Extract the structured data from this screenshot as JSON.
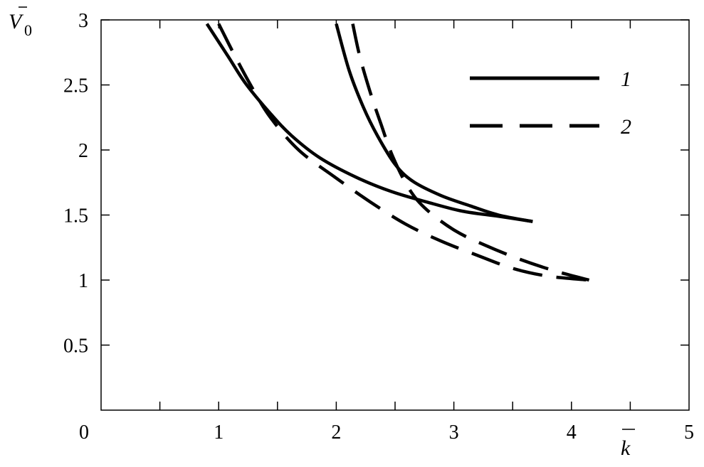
{
  "chart_data": {
    "type": "line",
    "title": "",
    "xlabel": "k",
    "ylabel": "V",
    "ylabel_subscript": "0",
    "xlim": [
      0,
      5
    ],
    "ylim": [
      0,
      3
    ],
    "xticks": [
      0,
      1,
      2,
      3,
      4,
      5
    ],
    "xtick_labels": [
      "0",
      "1",
      "2",
      "3",
      "4",
      "5"
    ],
    "yticks": [
      0.5,
      1,
      1.5,
      2,
      2.5,
      3
    ],
    "ytick_labels": [
      "0.5",
      "1",
      "1.5",
      "2",
      "2.5",
      "3"
    ],
    "grid": false,
    "legend_position": "top-right",
    "legend": [
      {
        "label": "1",
        "style": "solid"
      },
      {
        "label": "2",
        "style": "dashed"
      }
    ],
    "series": [
      {
        "name": "1",
        "style": "solid",
        "color": "#000000",
        "x": [
          0.9,
          1.08,
          1.23,
          1.44,
          1.62,
          1.86,
          2.17,
          2.47,
          2.77,
          3.07,
          3.38,
          3.67
        ],
        "y": [
          2.97,
          2.72,
          2.51,
          2.28,
          2.11,
          1.94,
          1.79,
          1.68,
          1.6,
          1.53,
          1.49,
          1.45
        ]
      },
      {
        "name": "1",
        "style": "solid",
        "color": "#000000",
        "x": [
          2.0,
          2.11,
          2.23,
          2.35,
          2.5,
          2.65,
          2.89,
          3.14,
          3.38,
          3.67
        ],
        "y": [
          2.97,
          2.61,
          2.33,
          2.11,
          1.89,
          1.76,
          1.65,
          1.57,
          1.5,
          1.45
        ]
      },
      {
        "name": "2",
        "style": "dashed",
        "color": "#000000",
        "x": [
          1.0,
          1.14,
          1.29,
          1.44,
          1.68,
          1.99,
          2.29,
          2.59,
          2.89,
          3.2,
          3.5,
          3.8,
          4.15
        ],
        "y": [
          2.97,
          2.72,
          2.47,
          2.25,
          2.0,
          1.79,
          1.6,
          1.43,
          1.3,
          1.19,
          1.09,
          1.03,
          1.0
        ]
      },
      {
        "name": "2",
        "style": "dashed",
        "color": "#000000",
        "x": [
          2.14,
          2.2,
          2.29,
          2.38,
          2.48,
          2.62,
          2.77,
          3.01,
          3.26,
          3.56,
          3.86,
          4.15
        ],
        "y": [
          2.97,
          2.72,
          2.44,
          2.2,
          1.95,
          1.7,
          1.54,
          1.38,
          1.27,
          1.16,
          1.07,
          1.0
        ]
      }
    ]
  }
}
